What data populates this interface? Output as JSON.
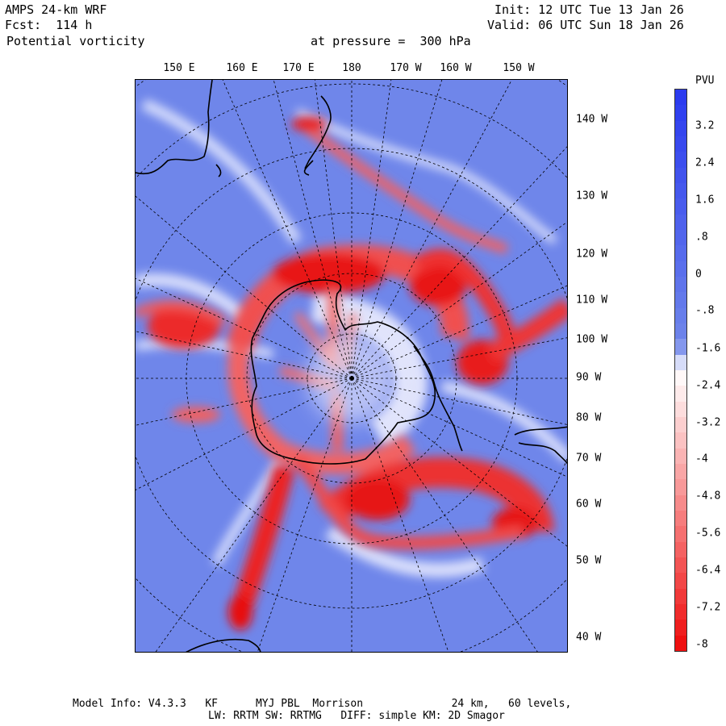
{
  "header": {
    "model": "AMPS 24-km WRF",
    "forecast": "Fcst:  114 h",
    "field": "Potential vorticity",
    "pressure": "at pressure =  300 hPa",
    "init": "Init: 12 UTC Tue 13 Jan 26",
    "valid": "Valid: 06 UTC Sun 18 Jan 26"
  },
  "map": {
    "lon_labels": [
      "150 E",
      "160 E",
      "170 E",
      "180",
      "170 W",
      "160 W",
      "150 W"
    ],
    "lat_labels": [
      "140 W",
      "130 W",
      "120 W",
      "110 W",
      "100 W",
      "90 W",
      "80 W",
      "70 W",
      "60 W",
      "50 W",
      "40 W"
    ],
    "colors": {
      "positive": "#2b3bef",
      "background": "#6f86ea",
      "negative": "#ee1010",
      "coastline": "#000000"
    }
  },
  "colorbar": {
    "unit": "PVU",
    "labels": [
      "3.2",
      "2.4",
      "1.6",
      ".8",
      "0",
      "-.8",
      "-1.6",
      "-2.4",
      "-3.2",
      "-4",
      "-4.8",
      "-5.6",
      "-6.4",
      "-7.2",
      "-8"
    ]
  },
  "footer": {
    "line1": "Model Info: V4.3.3   KF      MYJ PBL  Morrison              24 km,   60 levels,",
    "line2": "LW: RRTM SW: RRTMG   DIFF: simple KM: 2D Smagor"
  }
}
